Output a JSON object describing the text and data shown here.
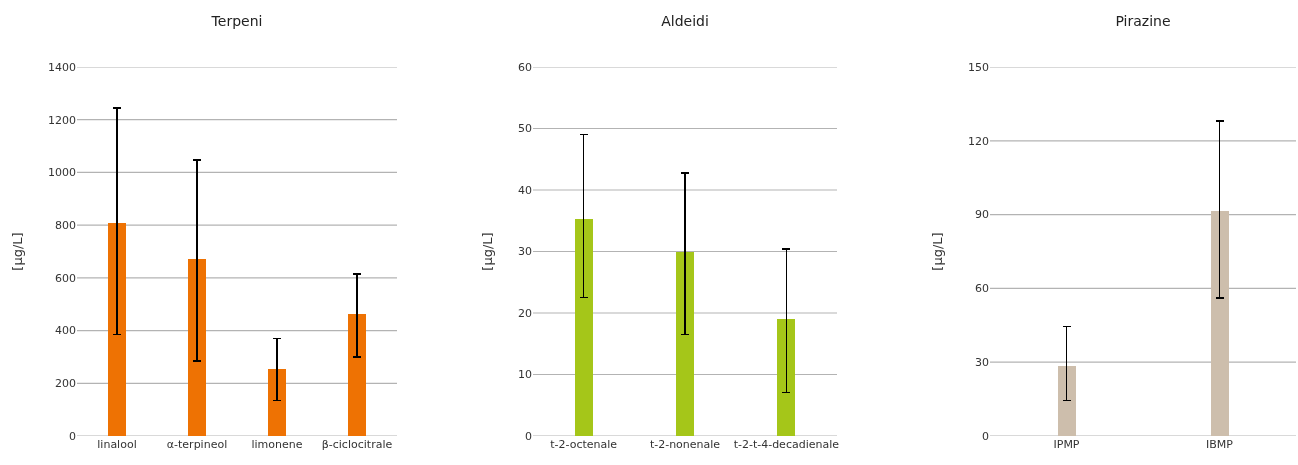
{
  "chart_data": [
    {
      "type": "bar",
      "title": "Terpeni",
      "ylabel": "[µg/L]",
      "categories": [
        "linalool",
        "α-terpineol",
        "limonene",
        "β-ciclocitrale"
      ],
      "values": [
        810,
        670,
        255,
        463
      ],
      "color": "#ee7203",
      "errors": [
        [
          385,
          1245
        ],
        [
          285,
          1047
        ],
        [
          135,
          370
        ],
        [
          300,
          615
        ]
      ],
      "ylim": [
        0,
        1400
      ],
      "yticks": [
        0,
        200,
        400,
        600,
        800,
        1000,
        1200,
        1400
      ],
      "grid": "y"
    },
    {
      "type": "bar",
      "title": "Aldeidi",
      "ylabel": "[µg/L]",
      "categories": [
        "t-2-octenale",
        "t-2-nonenale",
        "t-2-t-4-decadienale"
      ],
      "values": [
        35.3,
        30,
        19.1
      ],
      "color": "#a5c619",
      "errors": [
        [
          22.5,
          49
        ],
        [
          16.5,
          42.8
        ],
        [
          7.1,
          30.4
        ]
      ],
      "ylim": [
        0,
        60
      ],
      "yticks": [
        0,
        10,
        20,
        30,
        40,
        50,
        60
      ],
      "grid": "y"
    },
    {
      "type": "bar",
      "title": "Pirazine",
      "ylabel": "[µg/L]",
      "categories": [
        "IPMP",
        "IBMP"
      ],
      "values": [
        28.5,
        91.5
      ],
      "color": "#cdbeac",
      "errors": [
        [
          14.5,
          44.5
        ],
        [
          56,
          128
        ]
      ],
      "ylim": [
        0,
        150
      ],
      "yticks": [
        0,
        30,
        60,
        90,
        120,
        150
      ],
      "grid": "y"
    }
  ]
}
